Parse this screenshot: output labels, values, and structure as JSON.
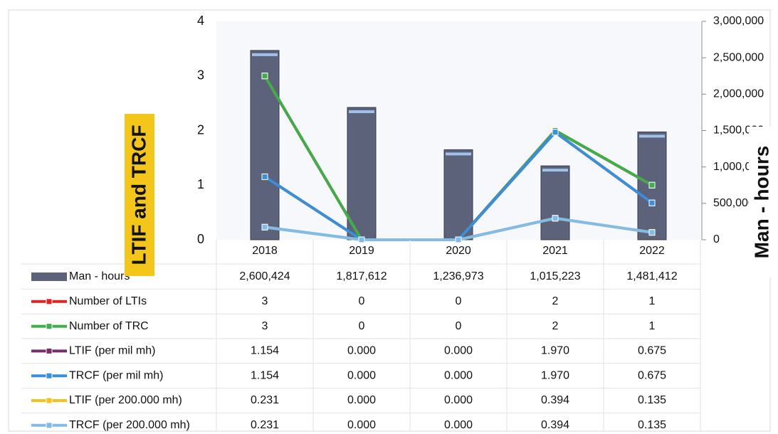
{
  "chart_data": {
    "type": "combo",
    "y_label": "LTIF and TRCF",
    "y2_label": "Man - hours",
    "categories": [
      "2018",
      "2019",
      "2020",
      "2021",
      "2022"
    ],
    "ylim": [
      0,
      4
    ],
    "yticks": [
      0,
      1,
      2,
      3,
      4
    ],
    "y2lim": [
      0,
      3000000
    ],
    "y2ticks": [
      0,
      {
        "value": 500000,
        "label": "500,000"
      },
      {
        "value": 1000000,
        "label": "1,000,000"
      },
      {
        "value": 1500000,
        "label": "1,500,000"
      },
      {
        "value": 2000000,
        "label": "2,000,000"
      },
      {
        "value": 2500000,
        "label": "2,500,000"
      },
      {
        "value": 3000000,
        "label": "3,000,000"
      }
    ],
    "series": [
      {
        "name": "Man - hours",
        "type": "bar",
        "axis": "y2",
        "color": "#5b6279",
        "values": [
          2600424,
          1817612,
          1236973,
          1015223,
          1481412
        ],
        "value_labels": [
          "2,600,424",
          "1,817,612",
          "1,236,973",
          "1,015,223",
          "1,481,412"
        ]
      },
      {
        "name": "Number of LTIs",
        "type": "line",
        "color": "#e02424",
        "values": [
          3,
          0,
          0,
          2,
          1
        ]
      },
      {
        "name": "Number of TRC",
        "type": "line",
        "color": "#3fae4a",
        "values": [
          3,
          0,
          0,
          2,
          1
        ]
      },
      {
        "name": "LTIF (per mil mh)",
        "type": "line",
        "color": "#7a2b6c",
        "values": [
          1.154,
          0,
          0,
          1.97,
          0.675
        ],
        "value_labels": [
          "1.154",
          "0.000",
          "0.000",
          "1.970",
          "0.675"
        ]
      },
      {
        "name": "TRCF (per mil mh)",
        "type": "line",
        "color": "#3a8fd9",
        "values": [
          1.154,
          0,
          0,
          1.97,
          0.675
        ],
        "value_labels": [
          "1.154",
          "0.000",
          "0.000",
          "1.970",
          "0.675"
        ]
      },
      {
        "name": "LTIF (per 200.000 mh)",
        "type": "line",
        "color": "#f0c419",
        "values": [
          0.231,
          0,
          0,
          0.394,
          0.135
        ],
        "value_labels": [
          "0.231",
          "0.000",
          "0.000",
          "0.394",
          "0.135"
        ]
      },
      {
        "name": "TRCF (per 200.000 mh)",
        "type": "line",
        "color": "#82bbe8",
        "values": [
          0.231,
          0,
          0,
          0.394,
          0.135
        ],
        "value_labels": [
          "0.231",
          "0.000",
          "0.000",
          "0.394",
          "0.135"
        ]
      }
    ]
  }
}
